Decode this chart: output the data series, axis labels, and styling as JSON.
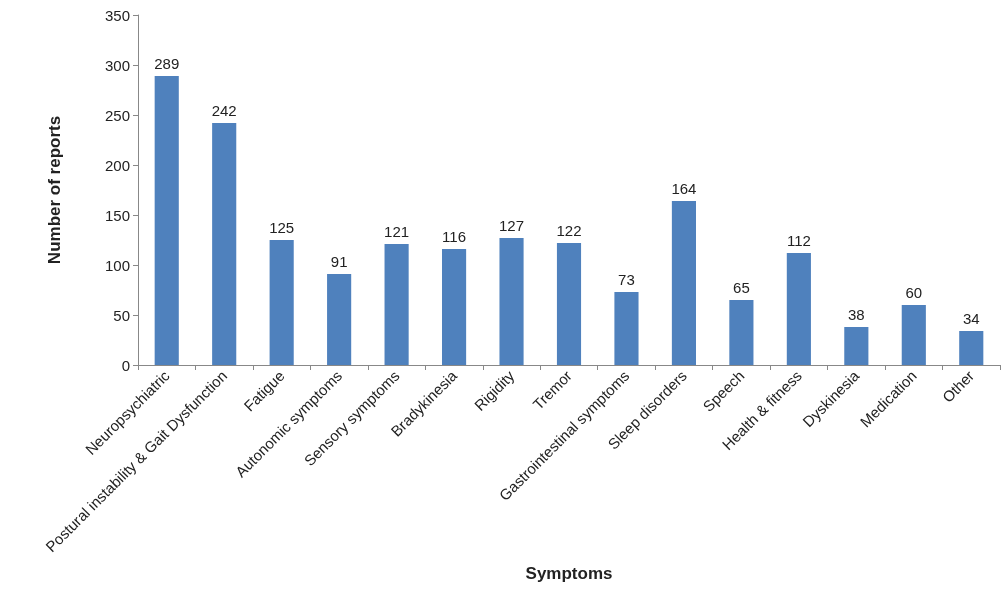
{
  "chart_data": {
    "type": "bar",
    "xlabel": "Symptoms",
    "ylabel": "Number of reports",
    "categories": [
      "Neuropsychiatric",
      "Postural instability & Gait Dysfunction",
      "Fatigue",
      "Autonomic symptoms",
      "Sensory symptoms",
      "Bradykinesia",
      "Rigidity",
      "Tremor",
      "Gastrointestinal symptoms",
      "Sleep disorders",
      "Speech",
      "Health & fitness",
      "Dyskinesia",
      "Medication",
      "Other"
    ],
    "values": [
      289,
      242,
      125,
      91,
      121,
      116,
      127,
      122,
      73,
      164,
      65,
      112,
      38,
      60,
      34
    ],
    "color": "#4f81bd",
    "ylim": [
      0,
      350
    ],
    "yticks": [
      0,
      50,
      100,
      150,
      200,
      250,
      300,
      350
    ],
    "data_labels": true
  }
}
